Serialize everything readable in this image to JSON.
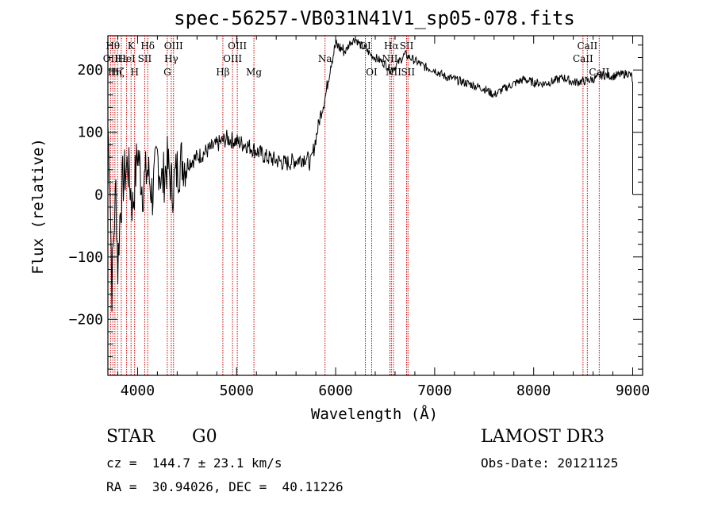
{
  "chart_data": {
    "type": "line",
    "title": "spec-56257-VB031N41V1_sp05-078.fits",
    "xlabel": "Wavelength (Å)",
    "ylabel": "Flux (relative)",
    "xlim": [
      3700,
      9100
    ],
    "ylim": [
      -290,
      255
    ],
    "xticks": [
      4000,
      5000,
      6000,
      7000,
      8000,
      9000
    ],
    "yticks": [
      -200,
      -100,
      0,
      100,
      200
    ],
    "line_color": "#000000",
    "marker_color": "#cc0000",
    "series": [
      {
        "name": "flux",
        "x": [
          3700,
          3720,
          3740,
          3760,
          3780,
          3800,
          3820,
          3850,
          3900,
          3950,
          4000,
          4050,
          4100,
          4150,
          4200,
          4250,
          4300,
          4350,
          4400,
          4450,
          4500,
          4600,
          4700,
          4800,
          4900,
          5000,
          5100,
          5200,
          5300,
          5400,
          5500,
          5600,
          5700,
          5750,
          5800,
          5850,
          5900,
          5950,
          6000,
          6050,
          6100,
          6150,
          6200,
          6250,
          6300,
          6350,
          6400,
          6450,
          6500,
          6550,
          6600,
          6650,
          6700,
          6750,
          6800,
          6900,
          7000,
          7100,
          7200,
          7300,
          7400,
          7500,
          7600,
          7650,
          7700,
          7800,
          7900,
          8000,
          8100,
          8200,
          8300,
          8400,
          8500,
          8600,
          8700,
          8800,
          8900,
          8950,
          8990,
          9000,
          9000
        ],
        "y": [
          110,
          30,
          -150,
          -60,
          10,
          -120,
          -40,
          20,
          50,
          -20,
          70,
          10,
          40,
          0,
          60,
          20,
          50,
          10,
          40,
          55,
          50,
          60,
          70,
          80,
          90,
          85,
          80,
          70,
          60,
          55,
          50,
          55,
          60,
          50,
          90,
          130,
          160,
          210,
          240,
          235,
          230,
          245,
          250,
          240,
          235,
          225,
          220,
          215,
          210,
          200,
          205,
          215,
          225,
          220,
          215,
          205,
          200,
          190,
          185,
          180,
          175,
          170,
          160,
          165,
          170,
          178,
          185,
          180,
          178,
          182,
          188,
          180,
          182,
          185,
          192,
          190,
          193,
          195,
          190,
          180,
          0
        ]
      }
    ],
    "spectral_lines": [
      {
        "wavelength": 3727,
        "label": "OII",
        "row": 2
      },
      {
        "wavelength": 3750,
        "label": "Hθ",
        "row": 1
      },
      {
        "wavelength": 3771,
        "label": "Hη",
        "row": 3
      },
      {
        "wavelength": 3798,
        "label": "Hζ",
        "row": 3
      },
      {
        "wavelength": 3835,
        "label": "Hε",
        "row": 2
      },
      {
        "wavelength": 3889,
        "label": "HeI",
        "row": 2
      },
      {
        "wavelength": 3934,
        "label": "K",
        "row": 1
      },
      {
        "wavelength": 3970,
        "label": "H",
        "row": 3
      },
      {
        "wavelength": 4072,
        "label": "SII",
        "row": 2
      },
      {
        "wavelength": 4102,
        "label": "Hδ",
        "row": 1
      },
      {
        "wavelength": 4300,
        "label": "G",
        "row": 3
      },
      {
        "wavelength": 4340,
        "label": "Hγ",
        "row": 2
      },
      {
        "wavelength": 4363,
        "label": "OIII",
        "row": 1
      },
      {
        "wavelength": 4861,
        "label": "Hβ",
        "row": 3
      },
      {
        "wavelength": 4959,
        "label": "OIII",
        "row": 2
      },
      {
        "wavelength": 5007,
        "label": "OIII",
        "row": 1
      },
      {
        "wavelength": 5175,
        "label": "Mg",
        "row": 3
      },
      {
        "wavelength": 5893,
        "label": "Na",
        "row": 2
      },
      {
        "wavelength": 6300,
        "label": "OI",
        "row": 1
      },
      {
        "wavelength": 6364,
        "label": "OI",
        "row": 3
      },
      {
        "wavelength": 6548,
        "label": "NII",
        "row": 2
      },
      {
        "wavelength": 6563,
        "label": "Hα",
        "row": 1
      },
      {
        "wavelength": 6584,
        "label": "NII",
        "row": 3
      },
      {
        "wavelength": 6717,
        "label": "SII",
        "row": 1
      },
      {
        "wavelength": 6731,
        "label": "SII",
        "row": 3
      },
      {
        "wavelength": 8498,
        "label": "CaII",
        "row": 2
      },
      {
        "wavelength": 8542,
        "label": "CaII",
        "row": 1
      },
      {
        "wavelength": 8662,
        "label": "CaII",
        "row": 3
      }
    ]
  },
  "info": {
    "object_class": "STAR",
    "subclass": "G0",
    "redshift": "cz =  144.7 ± 23.1 km/s",
    "coords": "RA =  30.94026, DEC =  40.11226",
    "survey": "LAMOST DR3",
    "obs_date": "Obs-Date: 20121125"
  }
}
